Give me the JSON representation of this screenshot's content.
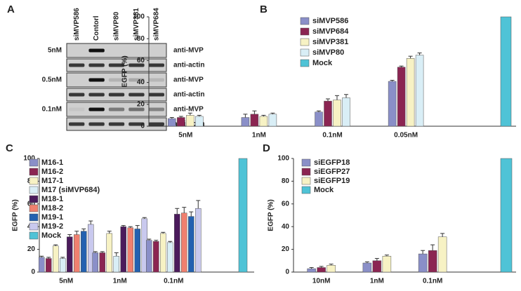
{
  "blot": {
    "panel": "A",
    "columns": [
      "siMVP586",
      "Contorl",
      "siMVP80",
      "siMVP381",
      "siMVP684"
    ],
    "rows": [
      {
        "label": "5nM",
        "antibodies": [
          "anti-MVP",
          "anti-actin"
        ]
      },
      {
        "label": "0.5nM",
        "antibodies": [
          "anti-MVP",
          "anti-actin"
        ]
      },
      {
        "label": "0.1nM",
        "antibodies": [
          "anti-MVP",
          "anti-actin"
        ]
      }
    ]
  },
  "chart_data": [
    {
      "type": "bar",
      "panel": "B",
      "ylabel": "EGFP (%)",
      "legend": "upper left",
      "categories": [
        "5nM",
        "1nM",
        "0.1nM",
        "0.05nM",
        null
      ],
      "ylim": [
        0,
        100
      ],
      "yticks": [
        0,
        20,
        40,
        60,
        80,
        100
      ],
      "series": [
        {
          "name": "siMVP586",
          "color": "#8a8fc8",
          "values": [
            7,
            8,
            13,
            41,
            null
          ],
          "errors": [
            1,
            3,
            1,
            1,
            null
          ]
        },
        {
          "name": "siMVP684",
          "color": "#8b2552",
          "values": [
            8,
            11,
            23,
            54,
            null
          ],
          "errors": [
            1,
            3,
            2,
            1,
            null
          ]
        },
        {
          "name": "siMVP381",
          "color": "#f7f2c4",
          "values": [
            10,
            9,
            24,
            62,
            null
          ],
          "errors": [
            2,
            1,
            4,
            2,
            null
          ]
        },
        {
          "name": "siMVP80",
          "color": "#d9eef6",
          "values": [
            9,
            11,
            26,
            65,
            null
          ],
          "errors": [
            1,
            1,
            3,
            2,
            null
          ]
        },
        {
          "name": "Mock",
          "color": "#4fc3d6",
          "values": [
            null,
            null,
            null,
            null,
            100
          ],
          "errors": [
            null,
            null,
            null,
            null,
            null
          ]
        }
      ]
    },
    {
      "type": "bar",
      "panel": "C",
      "ylabel": "EGFP (%)",
      "legend": "upper left",
      "categories": [
        "5nM",
        "1nM",
        "0.1nM",
        null
      ],
      "ylim": [
        0,
        100
      ],
      "yticks": [
        0,
        20,
        40,
        60,
        80,
        100
      ],
      "series": [
        {
          "name": "M16-1",
          "color": "#8a8fc8",
          "values": [
            13,
            17,
            28,
            null
          ],
          "errors": [
            1,
            1,
            1,
            null
          ]
        },
        {
          "name": "M16-2",
          "color": "#8b2552",
          "values": [
            12,
            17,
            27,
            null
          ],
          "errors": [
            1,
            1,
            1,
            null
          ]
        },
        {
          "name": "M17-1",
          "color": "#f7f2c4",
          "values": [
            23,
            34,
            34,
            null
          ],
          "errors": [
            1,
            2,
            1,
            null
          ]
        },
        {
          "name": "M17 (siMVP684)",
          "color": "#d9eef6",
          "values": [
            12,
            14,
            26,
            null
          ],
          "errors": [
            1,
            3,
            1,
            null
          ]
        },
        {
          "name": "M18-1",
          "color": "#4b1b5c",
          "values": [
            31,
            40,
            51,
            null
          ],
          "errors": [
            2,
            1,
            5,
            null
          ]
        },
        {
          "name": "M18-2",
          "color": "#f0806f",
          "values": [
            33,
            39,
            52,
            null
          ],
          "errors": [
            3,
            1,
            5,
            null
          ]
        },
        {
          "name": "M19-1",
          "color": "#2361b0",
          "values": [
            36,
            38,
            49,
            null
          ],
          "errors": [
            2,
            3,
            4,
            null
          ]
        },
        {
          "name": "M19-2",
          "color": "#c9c9ee",
          "values": [
            42,
            47,
            56,
            null
          ],
          "errors": [
            3,
            1,
            7,
            null
          ]
        },
        {
          "name": "Mock",
          "color": "#4fc3d6",
          "values": [
            null,
            null,
            null,
            100
          ],
          "errors": [
            null,
            null,
            null,
            null
          ]
        }
      ]
    },
    {
      "type": "bar",
      "panel": "D",
      "ylabel": "EGFP (%)",
      "legend": "upper left",
      "categories": [
        "10nM",
        "1nM",
        "0.1nM",
        null
      ],
      "ylim": [
        0,
        100
      ],
      "yticks": [
        0,
        20,
        40,
        60,
        80,
        100
      ],
      "series": [
        {
          "name": "siEGFP18",
          "color": "#8a8fc8",
          "values": [
            3,
            8,
            16,
            null
          ],
          "errors": [
            1,
            1,
            3,
            null
          ]
        },
        {
          "name": "siEGFP27",
          "color": "#8b2552",
          "values": [
            4,
            10,
            19,
            null
          ],
          "errors": [
            1,
            2,
            5,
            null
          ]
        },
        {
          "name": "siEGFP19",
          "color": "#f7f2c4",
          "values": [
            6,
            14,
            31,
            null
          ],
          "errors": [
            1,
            1,
            3,
            null
          ]
        },
        {
          "name": "Mock",
          "color": "#4fc3d6",
          "values": [
            null,
            null,
            null,
            100
          ],
          "errors": [
            null,
            null,
            null,
            null
          ]
        }
      ]
    }
  ]
}
